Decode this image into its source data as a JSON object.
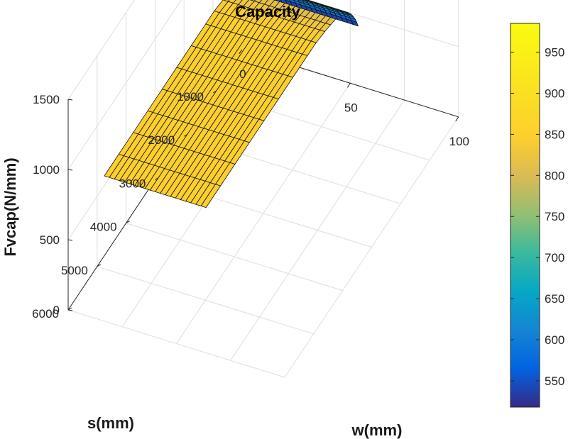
{
  "chart_data": {
    "type": "surface",
    "title": "Capacity",
    "xlabel": "w(mm)",
    "ylabel": "s(mm)",
    "zlabel": "Fvcap(N/mm)",
    "x_ticks": [
      "0",
      "50",
      "100"
    ],
    "y_ticks": [
      "1000",
      "2000",
      "3000",
      "4000",
      "5000",
      "6000"
    ],
    "z_ticks": [
      "0",
      "500",
      "1000",
      "1500"
    ],
    "colorbar_ticks": [
      "550",
      "600",
      "650",
      "700",
      "750",
      "800",
      "850",
      "900",
      "950"
    ],
    "xlim": [
      0,
      100
    ],
    "ylim": [
      0,
      6000
    ],
    "zlim": [
      0,
      1500
    ],
    "clim": [
      518,
      985
    ],
    "colormap": "parula",
    "grid": true,
    "surface": {
      "w_range": [
        10,
        57
      ],
      "s_range": [
        250,
        5500
      ],
      "s_samples": [
        250,
        300,
        350,
        400,
        450,
        500,
        600,
        700,
        800,
        1000,
        1200,
        1400,
        1700,
        2000,
        2500,
        3000,
        3500,
        4000,
        4500,
        5000,
        5500
      ],
      "fvcap_samples": [
        518,
        560,
        596,
        627,
        655,
        680,
        722,
        757,
        787,
        806,
        820,
        834,
        848,
        848,
        848,
        848,
        848,
        848,
        848,
        848,
        848
      ],
      "w_lines": 20
    }
  }
}
